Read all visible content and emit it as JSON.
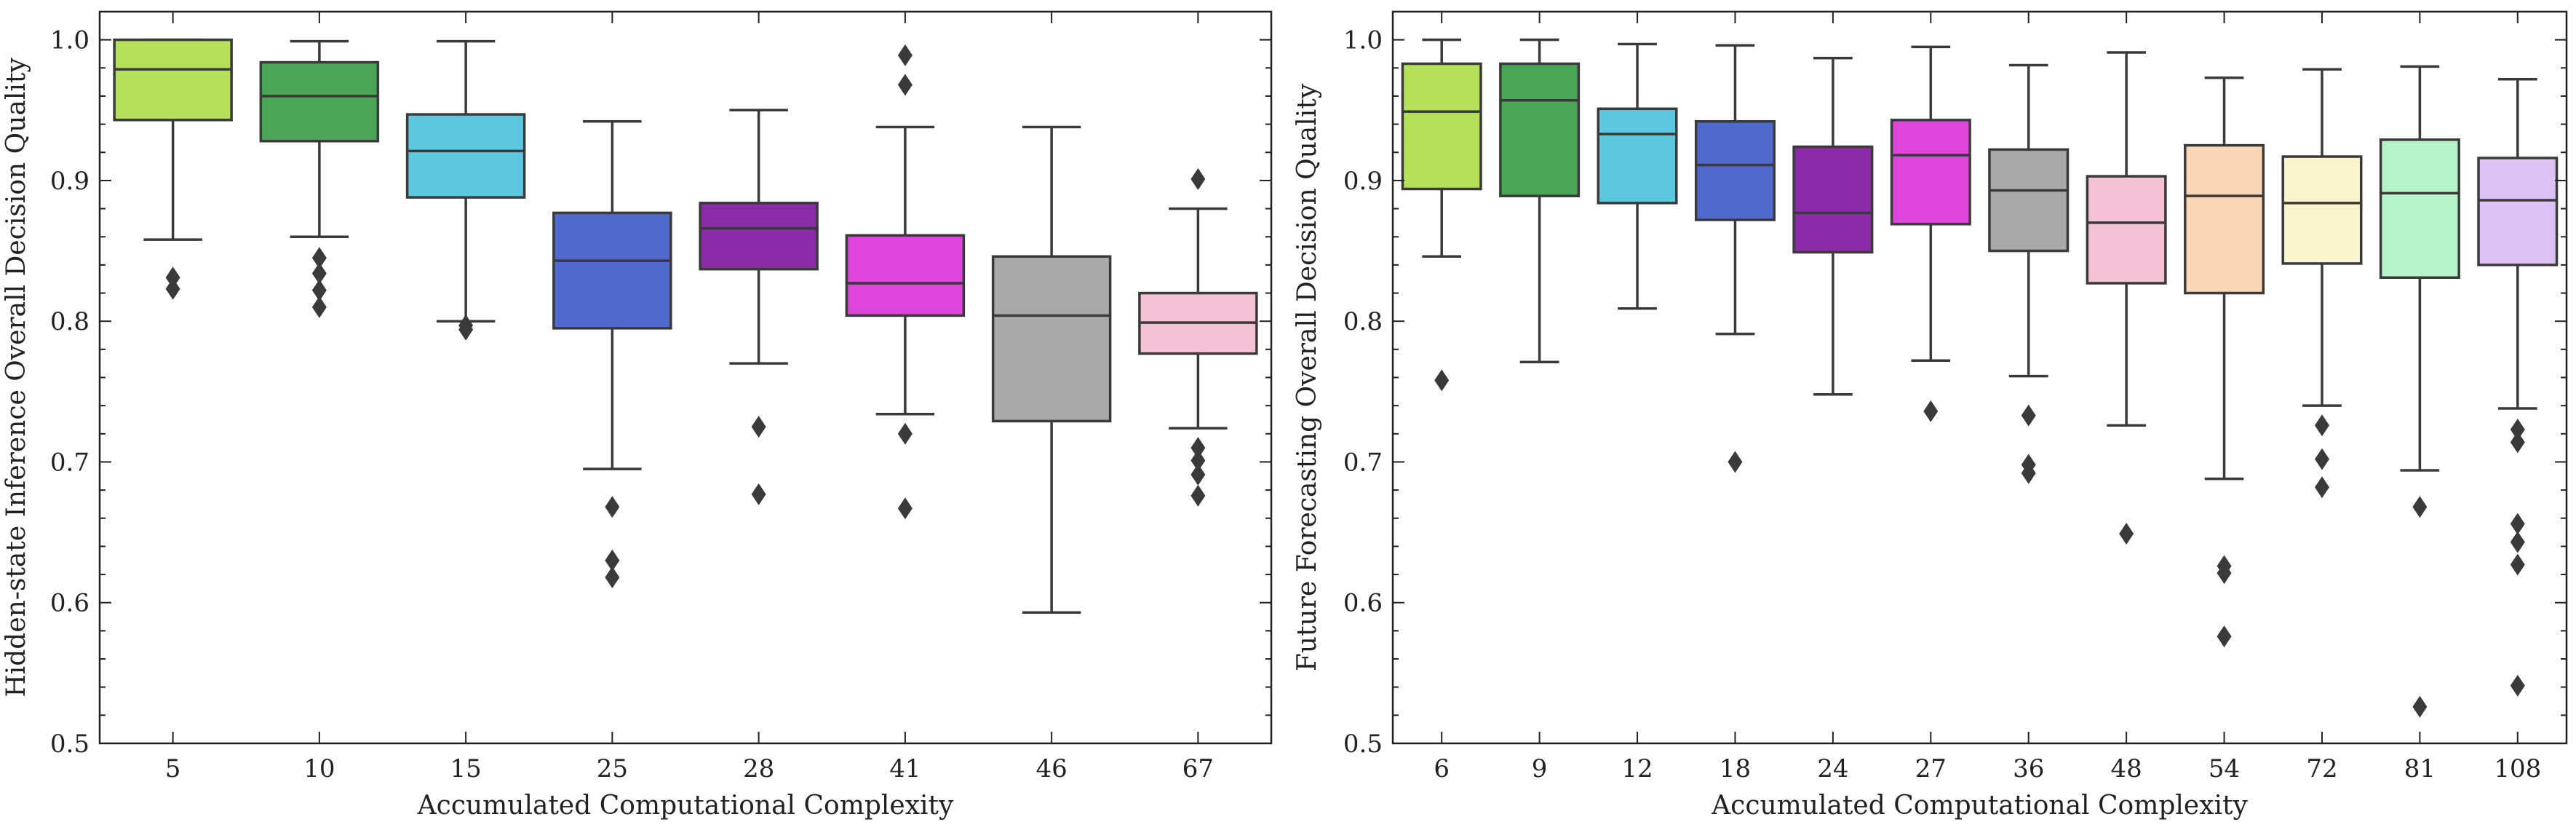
{
  "chart_data": [
    {
      "type": "box",
      "xlabel": "Accumulated Computational Complexity",
      "ylabel": "Hidden-state Inference Overall Decision Quality",
      "ylim": [
        0.5,
        1.02
      ],
      "yticks": [
        "0.5",
        "0.6",
        "0.7",
        "0.8",
        "0.9",
        "1.0"
      ],
      "grid": false,
      "categories": [
        "5",
        "10",
        "15",
        "25",
        "28",
        "41",
        "46",
        "67"
      ],
      "boxes": [
        {
          "category": "5",
          "color": "#b5e05a",
          "whisker_low": 0.858,
          "q1": 0.943,
          "median": 0.979,
          "q3": 1.0,
          "whisker_high": 1.0,
          "outliers": [
            0.831,
            0.823
          ]
        },
        {
          "category": "10",
          "color": "#48a654",
          "whisker_low": 0.86,
          "q1": 0.928,
          "median": 0.96,
          "q3": 0.984,
          "whisker_high": 0.999,
          "outliers": [
            0.845,
            0.834,
            0.822,
            0.81
          ]
        },
        {
          "category": "15",
          "color": "#5bc8e0",
          "whisker_low": 0.8,
          "q1": 0.888,
          "median": 0.921,
          "q3": 0.947,
          "whisker_high": 0.999,
          "outliers": [
            0.797,
            0.794
          ]
        },
        {
          "category": "25",
          "color": "#5069cf",
          "whisker_low": 0.695,
          "q1": 0.795,
          "median": 0.843,
          "q3": 0.877,
          "whisker_high": 0.942,
          "outliers": [
            0.668,
            0.63,
            0.618
          ]
        },
        {
          "category": "28",
          "color": "#8a2ba8",
          "whisker_low": 0.77,
          "q1": 0.837,
          "median": 0.866,
          "q3": 0.884,
          "whisker_high": 0.95,
          "outliers": [
            0.725,
            0.677
          ]
        },
        {
          "category": "41",
          "color": "#dd44da",
          "whisker_low": 0.734,
          "q1": 0.804,
          "median": 0.827,
          "q3": 0.861,
          "whisker_high": 0.938,
          "outliers": [
            0.989,
            0.968,
            0.72,
            0.667
          ]
        },
        {
          "category": "46",
          "color": "#a9a9a9",
          "whisker_low": 0.593,
          "q1": 0.729,
          "median": 0.804,
          "q3": 0.846,
          "whisker_high": 0.938,
          "outliers": []
        },
        {
          "category": "67",
          "color": "#f4c2d4",
          "whisker_low": 0.724,
          "q1": 0.777,
          "median": 0.799,
          "q3": 0.82,
          "whisker_high": 0.88,
          "outliers": [
            0.901,
            0.71,
            0.701,
            0.691,
            0.676
          ]
        }
      ]
    },
    {
      "type": "box",
      "xlabel": "Accumulated Computational Complexity",
      "ylabel": "Future Forecasting Overall Decision Quality",
      "ylim": [
        0.5,
        1.02
      ],
      "yticks": [
        "0.5",
        "0.6",
        "0.7",
        "0.8",
        "0.9",
        "1.0"
      ],
      "grid": false,
      "categories": [
        "6",
        "9",
        "12",
        "18",
        "24",
        "27",
        "36",
        "48",
        "54",
        "72",
        "81",
        "108"
      ],
      "boxes": [
        {
          "category": "6",
          "color": "#b5e05a",
          "whisker_low": 0.846,
          "q1": 0.894,
          "median": 0.949,
          "q3": 0.983,
          "whisker_high": 1.0,
          "outliers": [
            0.758
          ]
        },
        {
          "category": "9",
          "color": "#48a654",
          "whisker_low": 0.771,
          "q1": 0.889,
          "median": 0.957,
          "q3": 0.983,
          "whisker_high": 1.0,
          "outliers": []
        },
        {
          "category": "12",
          "color": "#5bc8e0",
          "whisker_low": 0.809,
          "q1": 0.884,
          "median": 0.933,
          "q3": 0.951,
          "whisker_high": 0.997,
          "outliers": []
        },
        {
          "category": "18",
          "color": "#5069cf",
          "whisker_low": 0.791,
          "q1": 0.872,
          "median": 0.911,
          "q3": 0.942,
          "whisker_high": 0.996,
          "outliers": [
            0.7
          ]
        },
        {
          "category": "24",
          "color": "#8a2ba8",
          "whisker_low": 0.748,
          "q1": 0.849,
          "median": 0.877,
          "q3": 0.924,
          "whisker_high": 0.987,
          "outliers": []
        },
        {
          "category": "27",
          "color": "#dd44da",
          "whisker_low": 0.772,
          "q1": 0.869,
          "median": 0.918,
          "q3": 0.943,
          "whisker_high": 0.995,
          "outliers": [
            0.736
          ]
        },
        {
          "category": "36",
          "color": "#a9a9a9",
          "whisker_low": 0.761,
          "q1": 0.85,
          "median": 0.893,
          "q3": 0.922,
          "whisker_high": 0.982,
          "outliers": [
            0.733,
            0.698,
            0.692
          ]
        },
        {
          "category": "48",
          "color": "#f4c2d4",
          "whisker_low": 0.726,
          "q1": 0.827,
          "median": 0.87,
          "q3": 0.903,
          "whisker_high": 0.991,
          "outliers": [
            0.649
          ]
        },
        {
          "category": "54",
          "color": "#f8d5b5",
          "whisker_low": 0.688,
          "q1": 0.82,
          "median": 0.889,
          "q3": 0.925,
          "whisker_high": 0.973,
          "outliers": [
            0.626,
            0.621,
            0.576
          ]
        },
        {
          "category": "72",
          "color": "#faf5cf",
          "whisker_low": 0.74,
          "q1": 0.841,
          "median": 0.884,
          "q3": 0.917,
          "whisker_high": 0.979,
          "outliers": [
            0.726,
            0.702,
            0.682
          ]
        },
        {
          "category": "81",
          "color": "#b3f5c9",
          "whisker_low": 0.694,
          "q1": 0.831,
          "median": 0.891,
          "q3": 0.929,
          "whisker_high": 0.981,
          "outliers": [
            0.668,
            0.526
          ]
        },
        {
          "category": "108",
          "color": "#dcc1f4",
          "whisker_low": 0.738,
          "q1": 0.84,
          "median": 0.886,
          "q3": 0.916,
          "whisker_high": 0.972,
          "outliers": [
            0.723,
            0.714,
            0.656,
            0.643,
            0.627,
            0.541
          ]
        }
      ]
    }
  ]
}
